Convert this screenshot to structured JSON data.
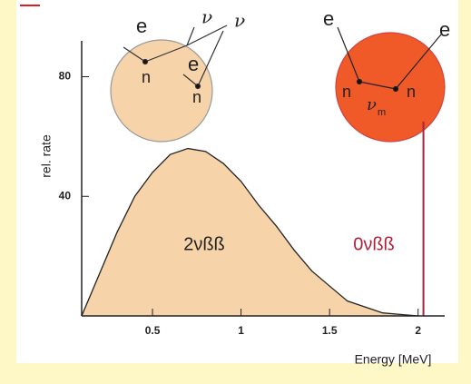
{
  "chart_data": {
    "type": "area",
    "x": [
      0.1,
      0.2,
      0.3,
      0.4,
      0.5,
      0.6,
      0.7,
      0.8,
      0.9,
      1.0,
      1.1,
      1.2,
      1.3,
      1.4,
      1.5,
      1.6,
      1.7,
      1.8,
      1.9,
      2.0
    ],
    "series": [
      {
        "name": "2νßß",
        "color": "#f6d3a8",
        "values": [
          0,
          14,
          28,
          40,
          48,
          54,
          56,
          55,
          51,
          45,
          37,
          30,
          22,
          15,
          10,
          5,
          3,
          1,
          0.5,
          0
        ]
      }
    ],
    "peak": {
      "label": "0νßß",
      "x": 2.03,
      "value": 65,
      "color": "#b0203a"
    },
    "xlabel": "Energy [MeV]",
    "ylabel": "rel. rate",
    "xlim": [
      0.1,
      2.15
    ],
    "ylim": [
      0,
      92
    ],
    "xticks": [
      0.5,
      1,
      1.5,
      2
    ],
    "yticks": [
      40,
      80
    ],
    "insets": [
      {
        "color": "#f6d3a8",
        "labels": [
          "e",
          "ν",
          "ν",
          "n",
          "e",
          "n"
        ]
      },
      {
        "color": "#f05a28",
        "labels": [
          "e",
          "e",
          "n",
          "ν",
          "m",
          "n"
        ]
      }
    ]
  }
}
